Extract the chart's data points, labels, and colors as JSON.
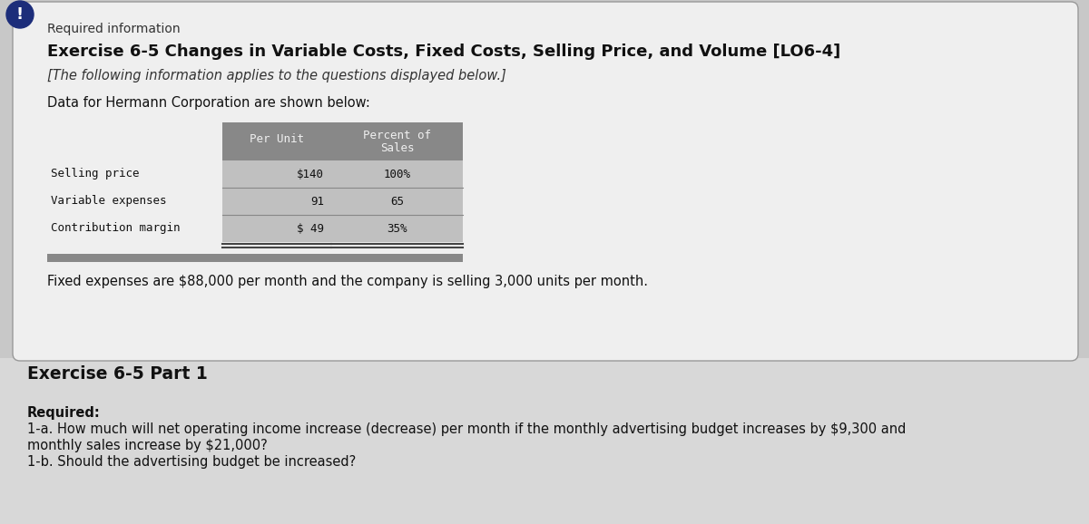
{
  "bg_color": "#c8c8c8",
  "card_bg": "#efefef",
  "card_border": "#aaaaaa",
  "bottom_bg": "#d8d8d8",
  "icon_color": "#1c2d7a",
  "required_info_label": "Required information",
  "title": "Exercise 6-5 Changes in Variable Costs, Fixed Costs, Selling Price, and Volume [LO6-4]",
  "subtitle": "[The following information applies to the questions displayed below.]",
  "data_intro": "Data for Hermann Corporation are shown below:",
  "table_rows": [
    {
      "label": "Selling price",
      "per_unit": "$140",
      "pct_sales": "100%"
    },
    {
      "label": "Variable expenses",
      "per_unit": "91",
      "pct_sales": "65"
    },
    {
      "label": "Contribution margin",
      "per_unit": "$ 49",
      "pct_sales": "35%"
    }
  ],
  "fixed_expenses_text": "Fixed expenses are $88,000 per month and the company is selling 3,000 units per month.",
  "part_label": "Exercise 6-5 Part 1",
  "required_label": "Required:",
  "q1a_line1": "1-a. How much will net operating income increase (decrease) per month if the monthly advertising budget increases by $9,300 and",
  "q1a_line2": "monthly sales increase by $21,000?",
  "q1b": "1-b. Should the advertising budget be increased?",
  "table_header_bg": "#888888",
  "table_row_bg": "#c0c0c0",
  "table_separator_color": "#888888",
  "table_header_text_color": "#f0f0f0",
  "table_text_color": "#111111",
  "table_bottom_bar_color": "#888888"
}
